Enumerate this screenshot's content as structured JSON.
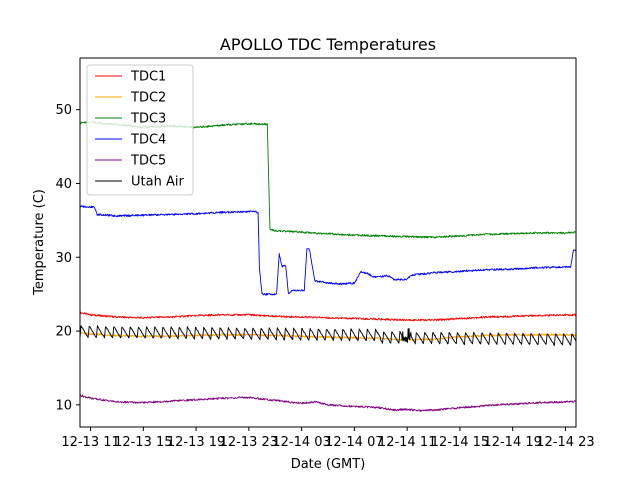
{
  "chart_data": {
    "type": "line",
    "title": "APOLLO TDC Temperatures",
    "xlabel": "Date (GMT)",
    "ylabel": "Temperature (C)",
    "xlim": [
      10.2,
      47.8
    ],
    "ylim": [
      7,
      57
    ],
    "legend_position": "top-left",
    "grid": false,
    "x_ticks": [
      {
        "value": 11,
        "label": "12-13 11"
      },
      {
        "value": 15,
        "label": "12-13 15"
      },
      {
        "value": 19,
        "label": "12-13 19"
      },
      {
        "value": 23,
        "label": "12-13 23"
      },
      {
        "value": 27,
        "label": "12-14 03"
      },
      {
        "value": 31,
        "label": "12-14 07"
      },
      {
        "value": 35,
        "label": "12-14 11"
      },
      {
        "value": 39,
        "label": "12-14 15"
      },
      {
        "value": 43,
        "label": "12-14 19"
      },
      {
        "value": 47,
        "label": "12-14 23"
      }
    ],
    "y_ticks": [
      {
        "value": 10,
        "label": "10"
      },
      {
        "value": 20,
        "label": "20"
      },
      {
        "value": 30,
        "label": "30"
      },
      {
        "value": 40,
        "label": "40"
      },
      {
        "value": 50,
        "label": "50"
      }
    ],
    "series": [
      {
        "name": "TDC1",
        "color": "#ff0000",
        "x": [
          10.2,
          11,
          13,
          15,
          17,
          19,
          21,
          23,
          25,
          27,
          29,
          31,
          33,
          35,
          37,
          39,
          41,
          43,
          45,
          47,
          47.8
        ],
        "y": [
          22.5,
          22.2,
          21.9,
          21.8,
          21.9,
          22.1,
          22.2,
          22.2,
          22.0,
          21.9,
          21.8,
          21.7,
          21.6,
          21.5,
          21.5,
          21.7,
          21.9,
          22.0,
          22.1,
          22.2,
          22.2
        ]
      },
      {
        "name": "TDC2",
        "color": "#ffa500",
        "x": [
          10.2,
          11,
          13,
          15,
          17,
          19,
          21,
          23,
          25,
          27,
          29,
          31,
          33,
          35,
          37,
          39,
          41,
          43,
          45,
          47,
          47.8
        ],
        "y": [
          19.8,
          19.6,
          19.4,
          19.3,
          19.3,
          19.4,
          19.5,
          19.5,
          19.4,
          19.3,
          19.2,
          19.1,
          19.0,
          18.8,
          18.9,
          19.2,
          19.4,
          19.5,
          19.5,
          19.5,
          19.4
        ]
      },
      {
        "name": "TDC3",
        "color": "#008000",
        "x": [
          10.2,
          11,
          13,
          15,
          17,
          19,
          21,
          23,
          24.4,
          24.6,
          25,
          27,
          29,
          31,
          33,
          35,
          37,
          39,
          41,
          43,
          45,
          47,
          47.8
        ],
        "y": [
          48.2,
          48.3,
          48.0,
          47.6,
          47.8,
          47.6,
          47.9,
          48.1,
          48.0,
          33.7,
          33.6,
          33.4,
          33.2,
          33.0,
          32.9,
          32.8,
          32.7,
          32.9,
          33.1,
          33.2,
          33.3,
          33.3,
          33.4
        ]
      },
      {
        "name": "TDC4",
        "color": "#0000ff",
        "x": [
          10.2,
          11.3,
          11.5,
          13,
          15,
          17,
          19,
          21,
          23,
          23.7,
          23.8,
          24.0,
          25.1,
          25.3,
          25.5,
          25.8,
          26.0,
          26.3,
          27.2,
          27.4,
          27.6,
          28.0,
          29,
          30,
          31,
          31.5,
          32,
          32.5,
          33.5,
          34,
          35,
          35.3,
          36,
          37,
          39,
          41,
          43,
          45,
          47.4,
          47.6,
          47.8
        ],
        "y": [
          36.9,
          36.8,
          35.8,
          35.6,
          35.7,
          35.8,
          35.9,
          36.1,
          36.2,
          36.1,
          28.5,
          25.0,
          25.0,
          30.5,
          28.8,
          28.8,
          25.0,
          25.5,
          25.5,
          31.2,
          31.0,
          26.8,
          26.5,
          26.4,
          26.5,
          28.0,
          27.8,
          27.3,
          27.5,
          27.0,
          27.0,
          27.6,
          27.7,
          27.9,
          28.1,
          28.3,
          28.4,
          28.6,
          28.7,
          31.0,
          30.8
        ]
      },
      {
        "name": "TDC5",
        "color": "#800080",
        "x": [
          10.2,
          11,
          13,
          15,
          17,
          19,
          21,
          23,
          25,
          27,
          28,
          29,
          31,
          33,
          34,
          35,
          36,
          37,
          39,
          41,
          43,
          45,
          47,
          47.8
        ],
        "y": [
          11.3,
          10.9,
          10.4,
          10.3,
          10.5,
          10.7,
          10.9,
          11.0,
          10.6,
          10.2,
          10.4,
          10.0,
          9.8,
          9.6,
          9.3,
          9.4,
          9.2,
          9.3,
          9.6,
          9.9,
          10.1,
          10.3,
          10.4,
          10.5
        ]
      },
      {
        "name": "Utah Air",
        "color": "#000000",
        "x": [
          10.2,
          47.8
        ],
        "y": [
          19.5,
          19.5
        ]
      }
    ]
  }
}
